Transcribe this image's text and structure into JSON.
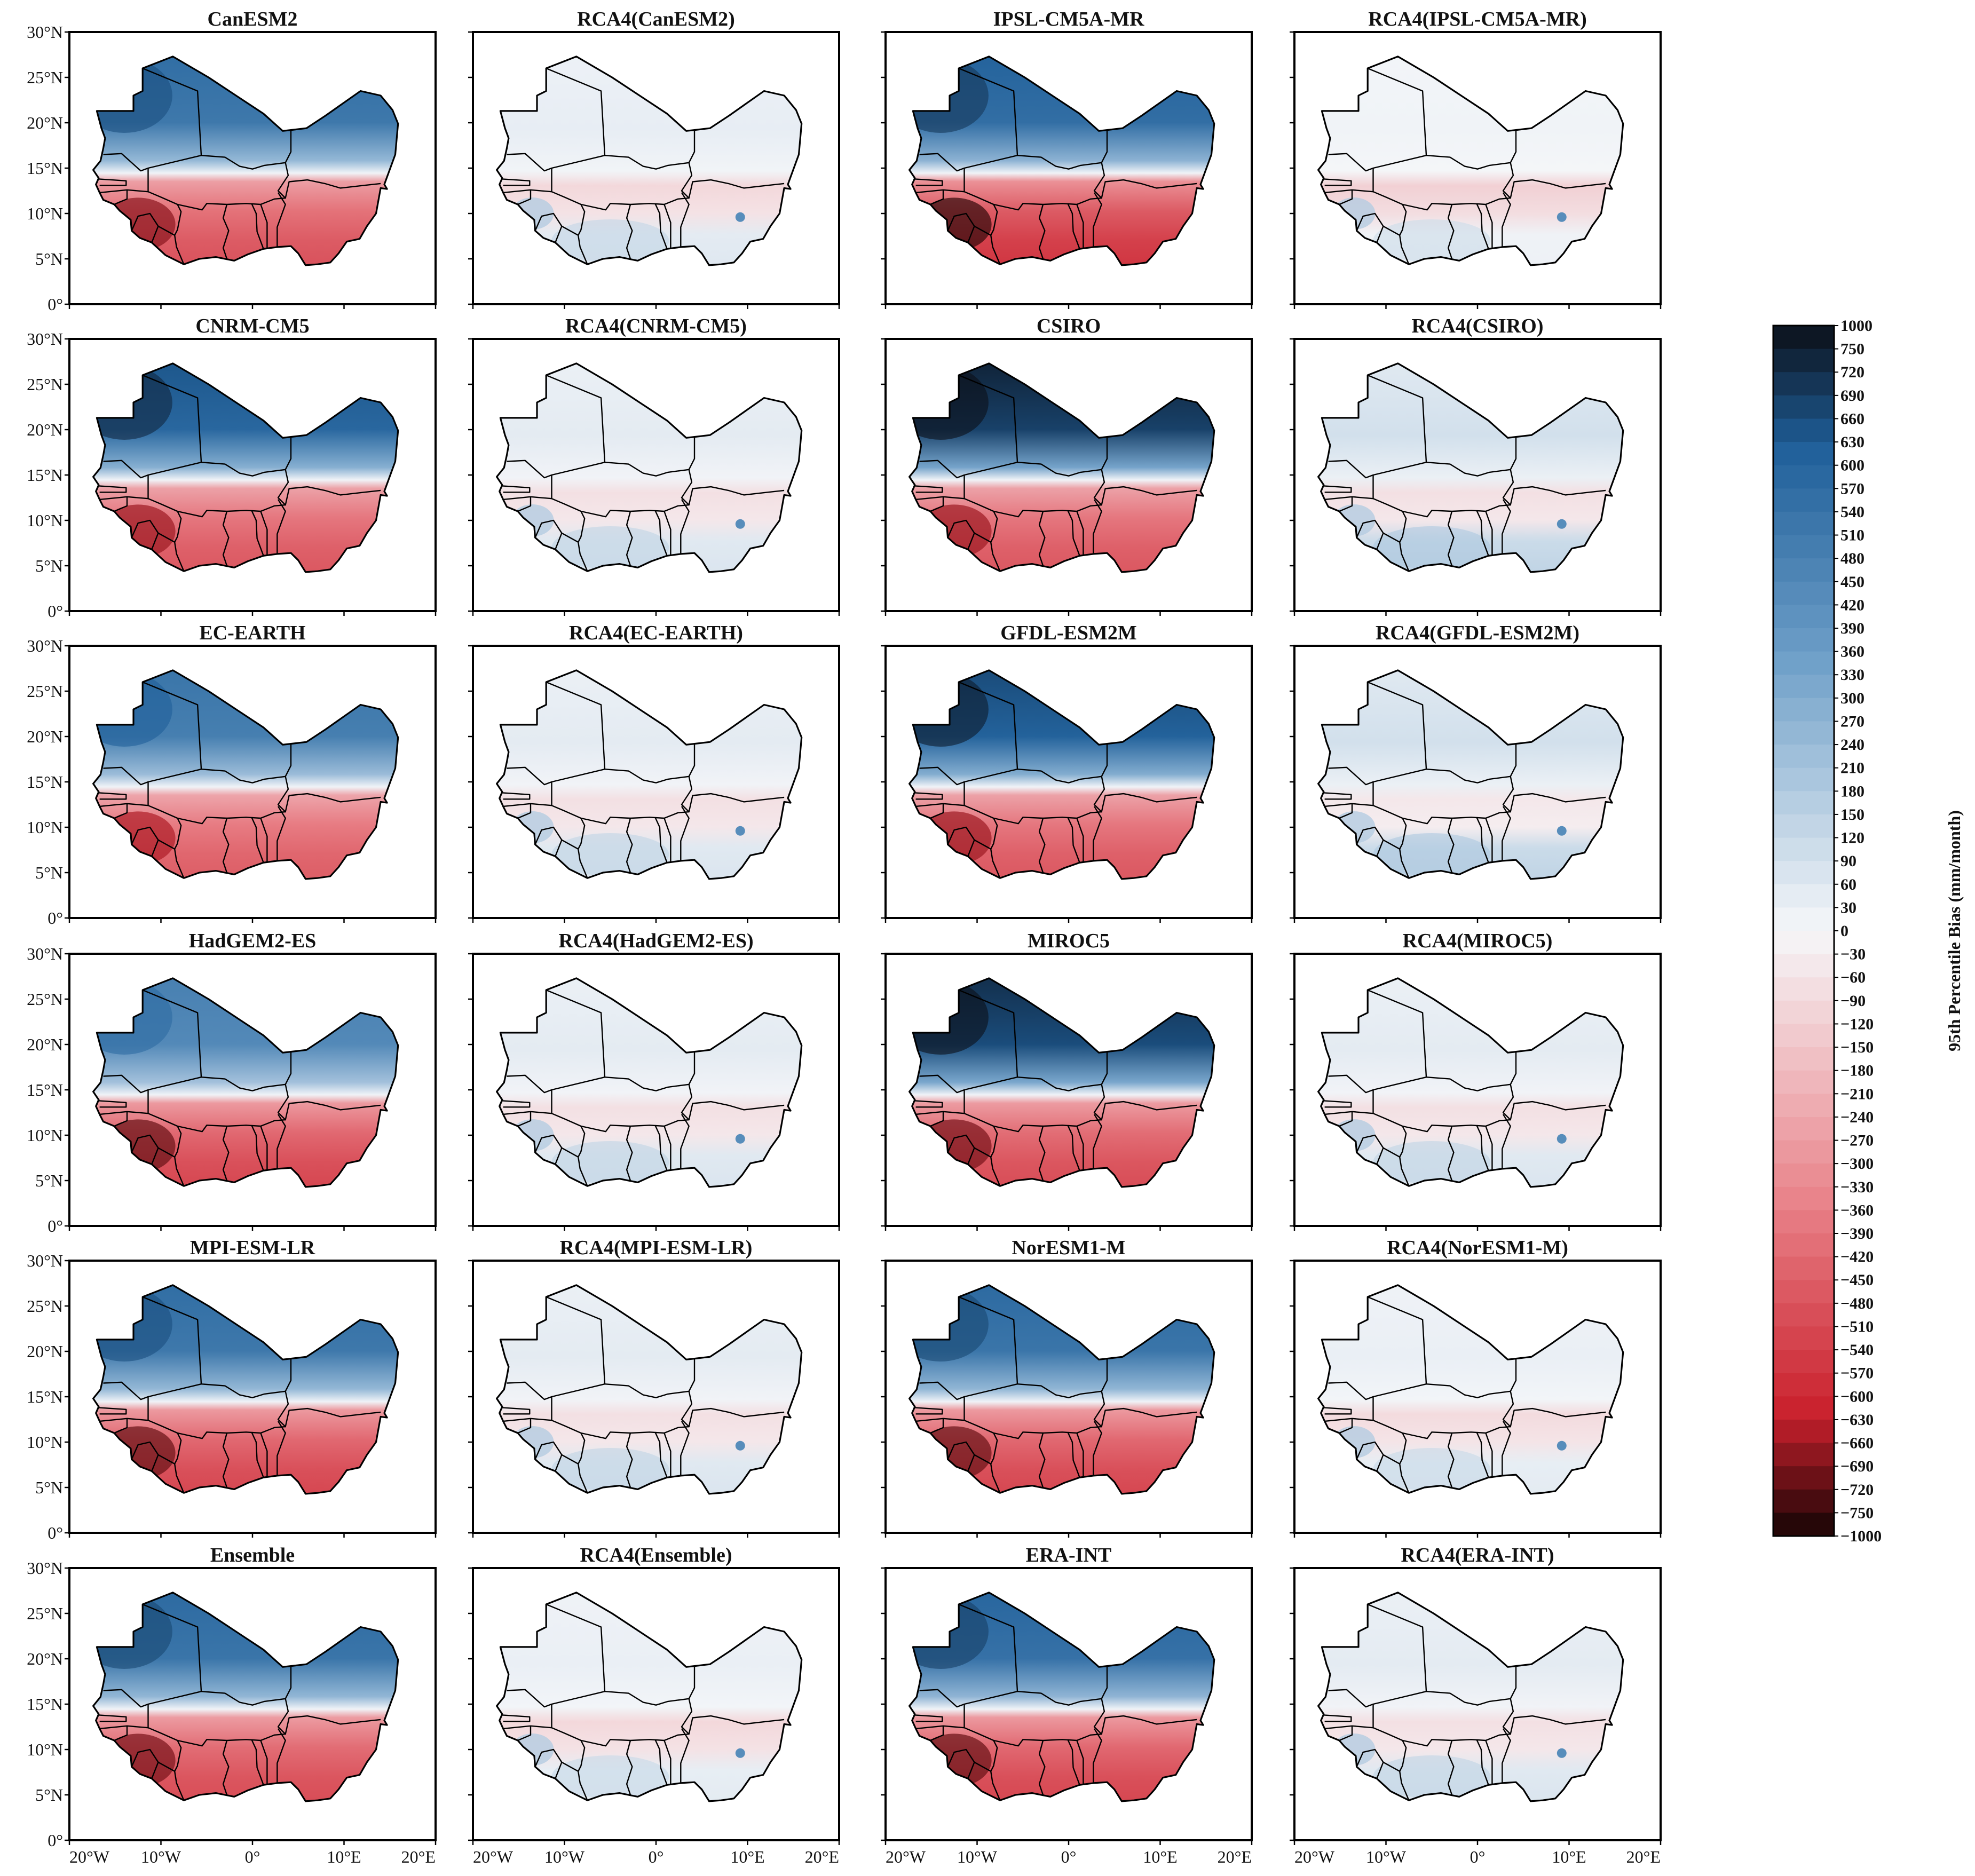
{
  "figure": {
    "colorbar": {
      "label": "95th Percentile Bias (mm/month)",
      "ticks": [
        "1000",
        "750",
        "720",
        "690",
        "660",
        "630",
        "600",
        "570",
        "540",
        "510",
        "480",
        "450",
        "420",
        "390",
        "360",
        "330",
        "300",
        "270",
        "240",
        "210",
        "180",
        "150",
        "120",
        "90",
        "60",
        "30",
        "0",
        "−30",
        "−60",
        "−90",
        "−120",
        "−150",
        "−180",
        "−210",
        "−240",
        "−270",
        "−300",
        "−330",
        "−360",
        "−390",
        "−420",
        "−450",
        "−480",
        "−510",
        "−540",
        "−570",
        "−600",
        "−630",
        "−660",
        "−690",
        "−720",
        "−750",
        "−1000"
      ],
      "colors": {
        "max": "#0b0f18",
        "high": "#1f5f99",
        "mid_blue": "#6e9fc8",
        "zero": "#f6f7f9",
        "mid_red": "#e98289",
        "low": "#c9202c",
        "min": "#150404"
      }
    },
    "lat_ticks": [
      "30°N",
      "25°N",
      "20°N",
      "15°N",
      "10°N",
      "5°N",
      "0°"
    ],
    "lon_ticks": [
      "20°W",
      "10°W",
      "0°",
      "10°E",
      "20°E"
    ],
    "panels": [
      {
        "title": "CanESM2",
        "style": "gcm",
        "north_bias": 0.72,
        "south_bias": 0.62
      },
      {
        "title": "RCA4(CanESM2)",
        "style": "rcm",
        "north_bias": 0.05,
        "south_bias": 0.2
      },
      {
        "title": "IPSL-CM5A-MR",
        "style": "gcm",
        "north_bias": 0.78,
        "south_bias": 0.72
      },
      {
        "title": "RCA4(IPSL-CM5A-MR)",
        "style": "rcm",
        "north_bias": 0.02,
        "south_bias": 0.25
      },
      {
        "title": "CNRM-CM5",
        "style": "gcm",
        "north_bias": 0.82,
        "south_bias": 0.6
      },
      {
        "title": "RCA4(CNRM-CM5)",
        "style": "rcm",
        "north_bias": 0.06,
        "south_bias": 0.15
      },
      {
        "title": "CSIRO",
        "style": "gcm",
        "north_bias": 0.95,
        "south_bias": 0.6
      },
      {
        "title": "RCA4(CSIRO)",
        "style": "rcm",
        "north_bias": 0.12,
        "south_bias": 0.15
      },
      {
        "title": "EC-EARTH",
        "style": "gcm",
        "north_bias": 0.68,
        "south_bias": 0.58
      },
      {
        "title": "RCA4(EC-EARTH)",
        "style": "rcm",
        "north_bias": 0.06,
        "south_bias": 0.15
      },
      {
        "title": "GFDL-ESM2M",
        "style": "gcm",
        "north_bias": 0.85,
        "south_bias": 0.6
      },
      {
        "title": "RCA4(GFDL-ESM2M)",
        "style": "rcm",
        "north_bias": 0.12,
        "south_bias": 0.1
      },
      {
        "title": "HadGEM2-ES",
        "style": "gcm",
        "north_bias": 0.62,
        "south_bias": 0.66
      },
      {
        "title": "RCA4(HadGEM2-ES)",
        "style": "rcm",
        "north_bias": 0.06,
        "south_bias": 0.15
      },
      {
        "title": "MIROC5",
        "style": "gcm",
        "north_bias": 0.92,
        "south_bias": 0.64
      },
      {
        "title": "RCA4(MIROC5)",
        "style": "rcm",
        "north_bias": 0.06,
        "south_bias": 0.15
      },
      {
        "title": "MPI-ESM-LR",
        "style": "gcm",
        "north_bias": 0.72,
        "south_bias": 0.66
      },
      {
        "title": "RCA4(MPI-ESM-LR)",
        "style": "rcm",
        "north_bias": 0.06,
        "south_bias": 0.15
      },
      {
        "title": "NorESM1-M",
        "style": "gcm",
        "north_bias": 0.74,
        "south_bias": 0.66
      },
      {
        "title": "RCA4(NorESM1-M)",
        "style": "rcm",
        "north_bias": 0.04,
        "south_bias": 0.18
      },
      {
        "title": "Ensemble",
        "style": "gcm",
        "north_bias": 0.74,
        "south_bias": 0.64
      },
      {
        "title": "RCA4(Ensemble)",
        "style": "rcm",
        "north_bias": 0.04,
        "south_bias": 0.2
      },
      {
        "title": "ERA-INT",
        "style": "gcm",
        "north_bias": 0.76,
        "south_bias": 0.66
      },
      {
        "title": "RCA4(ERA-INT)",
        "style": "rcm",
        "north_bias": 0.06,
        "south_bias": 0.15
      }
    ]
  }
}
